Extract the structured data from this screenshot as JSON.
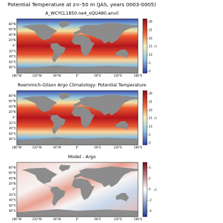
{
  "title": "Potential Temperature at z=-50 m (JAS, years 0003-0005)",
  "map": {
    "lat_ticks": [
      "80°N",
      "60°N",
      "40°N",
      "20°N",
      "0°",
      "20°S",
      "40°S",
      "60°S",
      "80°S"
    ],
    "lon_ticks": [
      "180°W",
      "120°W",
      "60°W",
      "0°",
      "60°E",
      "120°E",
      "180°E"
    ]
  },
  "panels": [
    {
      "title": "A_WCYCL1850.ne4_oQU480.anvil",
      "colorbar": {
        "label": "°C",
        "lim": [
          -1,
          32
        ],
        "ticks": [
          0,
          5,
          10,
          15,
          20,
          25,
          30
        ]
      }
    },
    {
      "title": "Roemmich-Gilson Argo Climatology: Potential Temperature",
      "colorbar": {
        "label": "°C",
        "lim": [
          -1,
          32
        ],
        "ticks": [
          0,
          5,
          10,
          15,
          20,
          25,
          30
        ]
      }
    },
    {
      "title": "Model - Argo",
      "colorbar": {
        "label": "°C",
        "lim": [
          -5,
          5
        ],
        "ticks": [
          -4,
          -2,
          0,
          2,
          4
        ]
      }
    }
  ]
}
